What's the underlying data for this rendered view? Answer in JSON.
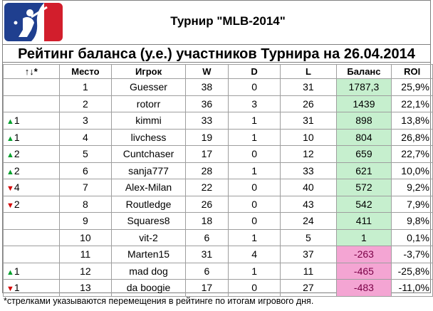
{
  "header": {
    "tournament_title": "Турнир \"MLB-2014\"",
    "rating_title": "Рейтинг баланса (у.е.) участников Турнира на 26.04.2014"
  },
  "colors": {
    "positive_balance_bg": "#c6efce",
    "negative_balance_bg": "#f4a5d3",
    "arrow_up": "#00a02b",
    "arrow_down": "#d40000",
    "logo_blue": "#1f3f8f",
    "logo_red": "#d21e2c"
  },
  "table": {
    "columns": [
      "↑↓*",
      "Место",
      "Игрок",
      "W",
      "D",
      "L",
      "Баланс",
      "ROI"
    ],
    "rows": [
      {
        "move_arrow": "",
        "move_num": "",
        "pos": "1",
        "player": "Guesser",
        "w": "38",
        "d": "0",
        "l": "31",
        "balance": "1787,3",
        "roi": "25,9%",
        "sign": "pos"
      },
      {
        "move_arrow": "",
        "move_num": "",
        "pos": "2",
        "player": "rotorr",
        "w": "36",
        "d": "3",
        "l": "26",
        "balance": "1439",
        "roi": "22,1%",
        "sign": "pos"
      },
      {
        "move_arrow": "▲",
        "move_num": "1",
        "dir": "up",
        "pos": "3",
        "player": "kimmi",
        "w": "33",
        "d": "1",
        "l": "31",
        "balance": "898",
        "roi": "13,8%",
        "sign": "pos"
      },
      {
        "move_arrow": "▲",
        "move_num": "1",
        "dir": "up",
        "pos": "4",
        "player": "livchess",
        "w": "19",
        "d": "1",
        "l": "10",
        "balance": "804",
        "roi": "26,8%",
        "sign": "pos"
      },
      {
        "move_arrow": "▲",
        "move_num": "2",
        "dir": "up",
        "pos": "5",
        "player": "Cuntchaser",
        "w": "17",
        "d": "0",
        "l": "12",
        "balance": "659",
        "roi": "22,7%",
        "sign": "pos"
      },
      {
        "move_arrow": "▲",
        "move_num": "2",
        "dir": "up",
        "pos": "6",
        "player": "sanja777",
        "w": "28",
        "d": "1",
        "l": "33",
        "balance": "621",
        "roi": "10,0%",
        "sign": "pos"
      },
      {
        "move_arrow": "▼",
        "move_num": "4",
        "dir": "down",
        "pos": "7",
        "player": "Alex-Milan",
        "w": "22",
        "d": "0",
        "l": "40",
        "balance": "572",
        "roi": "9,2%",
        "sign": "pos"
      },
      {
        "move_arrow": "▼",
        "move_num": "2",
        "dir": "down",
        "pos": "8",
        "player": "Routledge",
        "w": "26",
        "d": "0",
        "l": "43",
        "balance": "542",
        "roi": "7,9%",
        "sign": "pos"
      },
      {
        "move_arrow": "",
        "move_num": "",
        "pos": "9",
        "player": "Squares8",
        "w": "18",
        "d": "0",
        "l": "24",
        "balance": "411",
        "roi": "9,8%",
        "sign": "pos"
      },
      {
        "move_arrow": "",
        "move_num": "",
        "pos": "10",
        "player": "vit-2",
        "w": "6",
        "d": "1",
        "l": "5",
        "balance": "1",
        "roi": "0,1%",
        "sign": "pos"
      },
      {
        "move_arrow": "",
        "move_num": "",
        "pos": "11",
        "player": "Marten15",
        "w": "31",
        "d": "4",
        "l": "37",
        "balance": "-263",
        "roi": "-3,7%",
        "sign": "neg"
      },
      {
        "move_arrow": "▲",
        "move_num": "1",
        "dir": "up",
        "pos": "12",
        "player": "mad dog",
        "w": "6",
        "d": "1",
        "l": "11",
        "balance": "-465",
        "roi": "-25,8%",
        "sign": "neg"
      },
      {
        "move_arrow": "▼",
        "move_num": "1",
        "dir": "down",
        "pos": "13",
        "player": "da boogie",
        "w": "17",
        "d": "0",
        "l": "27",
        "balance": "-483",
        "roi": "-11,0%",
        "sign": "neg"
      }
    ]
  },
  "footnote": "*стрелками указываются перемещения в рейтинге по итогам игрового дня."
}
